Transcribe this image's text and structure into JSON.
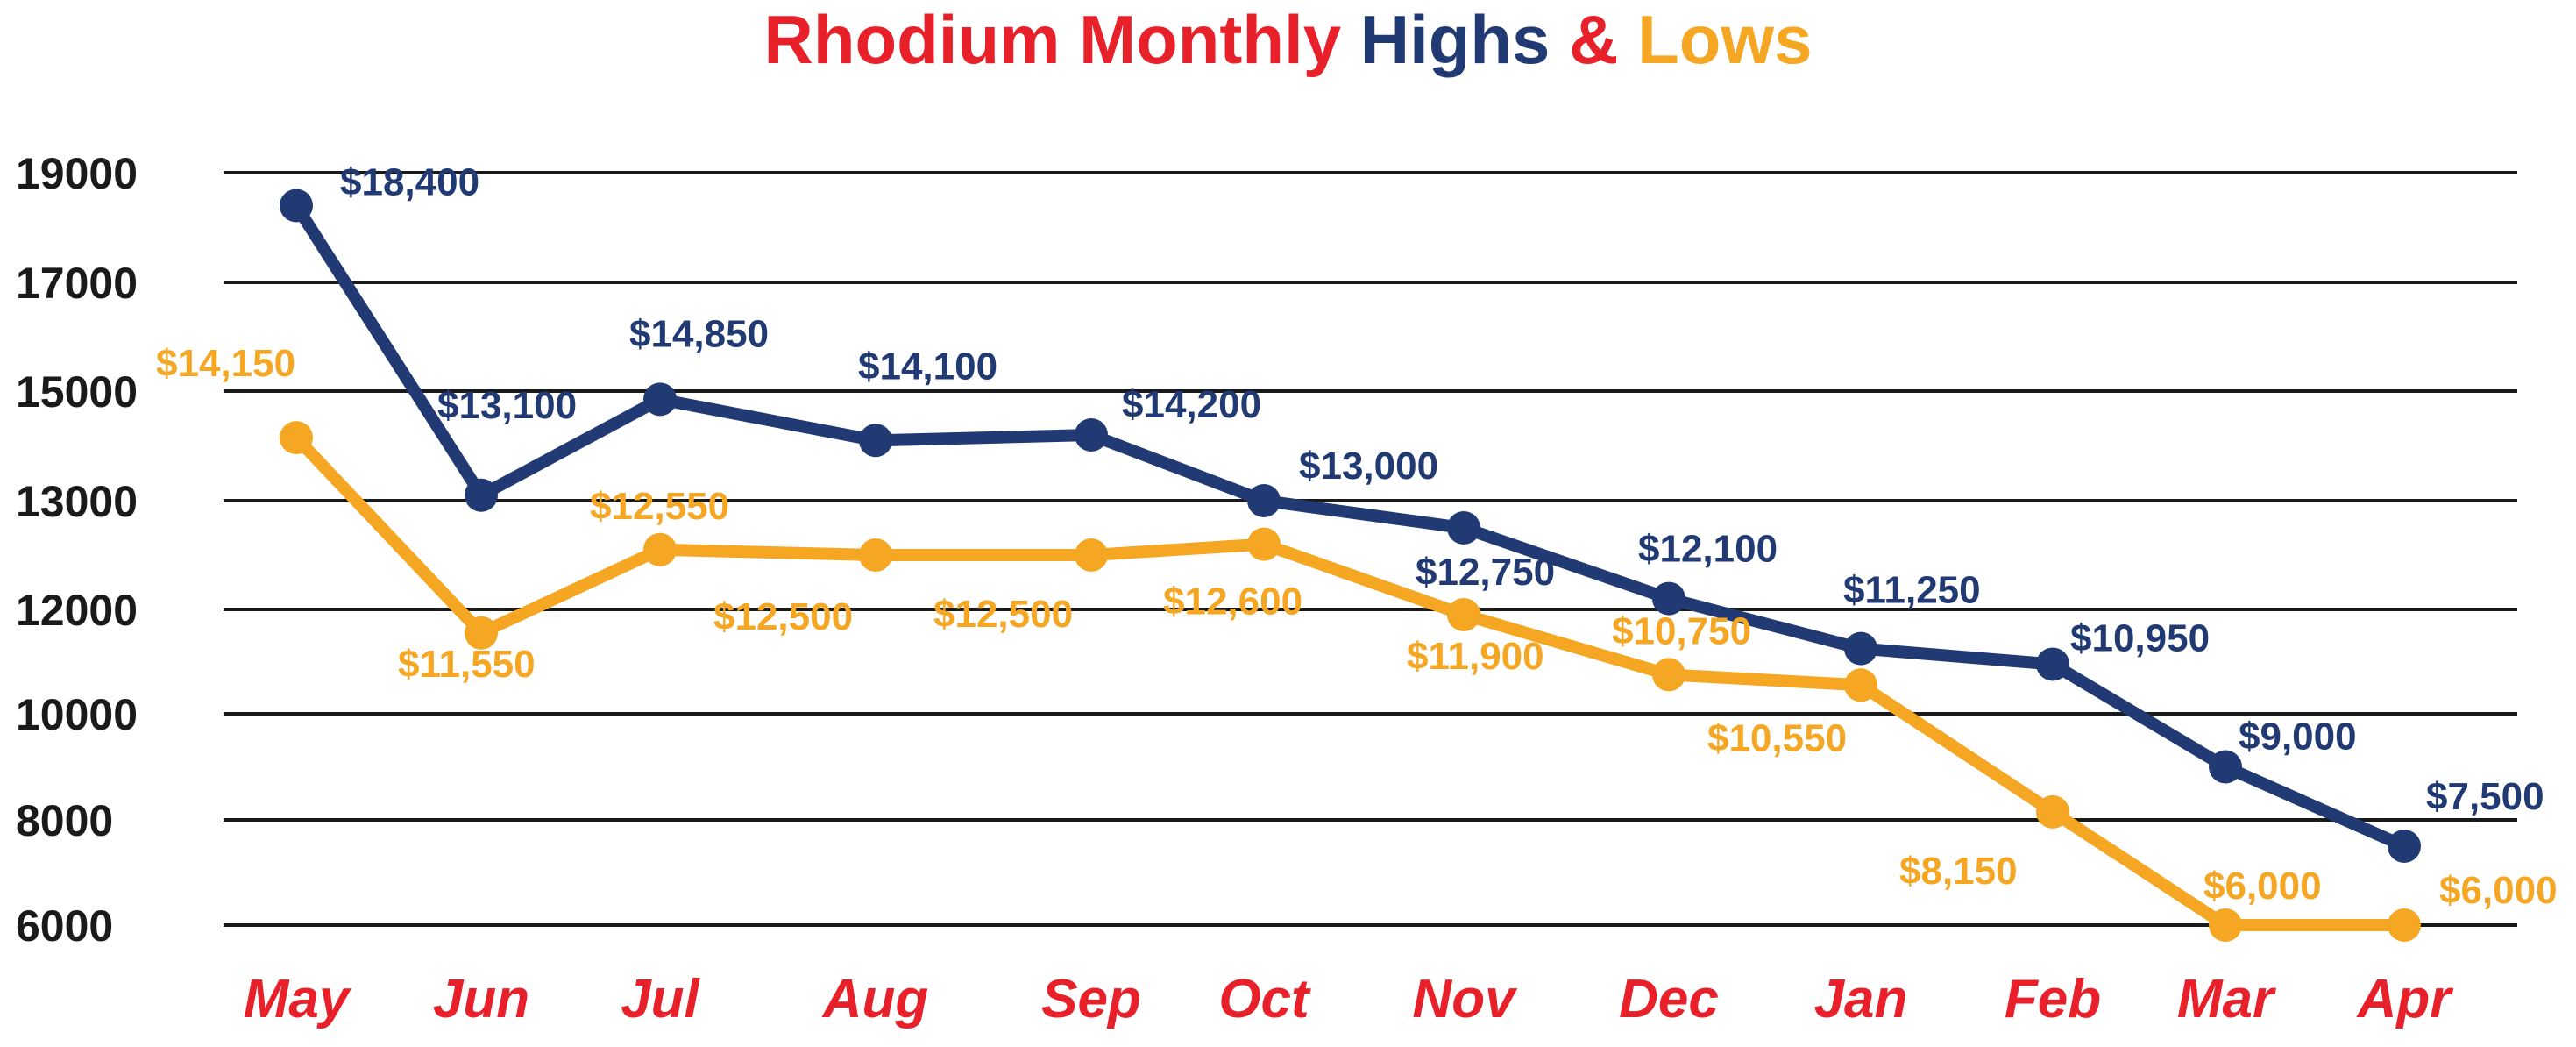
{
  "chart_data": {
    "type": "line",
    "title": {
      "part1": "Rhodium Monthly",
      "part2": "Highs",
      "part3": "&",
      "part4": "Lows"
    },
    "categories": [
      "May",
      "Jun",
      "Jul",
      "Aug",
      "Sep",
      "Oct",
      "Nov",
      "Dec",
      "Jan",
      "Feb",
      "Mar",
      "Apr"
    ],
    "ytick_labels": [
      "19000",
      "17000",
      "15000",
      "13000",
      "12000",
      "10000",
      "8000",
      "6000"
    ],
    "grid": true,
    "legend": "none",
    "series": [
      {
        "name": "Highs",
        "color": "#213a73",
        "values": [
          18400,
          13100,
          14850,
          14100,
          14200,
          13000,
          12750,
          12100,
          11250,
          10950,
          9000,
          7500
        ],
        "labels": [
          "$18,400",
          "$13,100",
          "$14,850",
          "$14,100",
          "$14,200",
          "$13,000",
          "$12,750",
          "$12,100",
          "$11,250",
          "$10,950",
          "$9,000",
          "$7,500"
        ]
      },
      {
        "name": "Lows",
        "color": "#f5a623",
        "values": [
          14150,
          11550,
          12550,
          12500,
          12500,
          12600,
          11900,
          10750,
          10550,
          8150,
          6000,
          6000
        ],
        "labels": [
          "$14,150",
          "$11,550",
          "$12,550",
          "$12,500",
          "$12,500",
          "$12,600",
          "$11,900",
          "$10,750",
          "$10,550",
          "$8,150",
          "$6,000",
          "$6,000"
        ]
      }
    ],
    "colors": {
      "title_red": "#e8202a",
      "title_navy": "#213a73",
      "title_orange": "#f5a623",
      "xtick": "#e8202a",
      "gridline": "#1a1a1a"
    }
  }
}
